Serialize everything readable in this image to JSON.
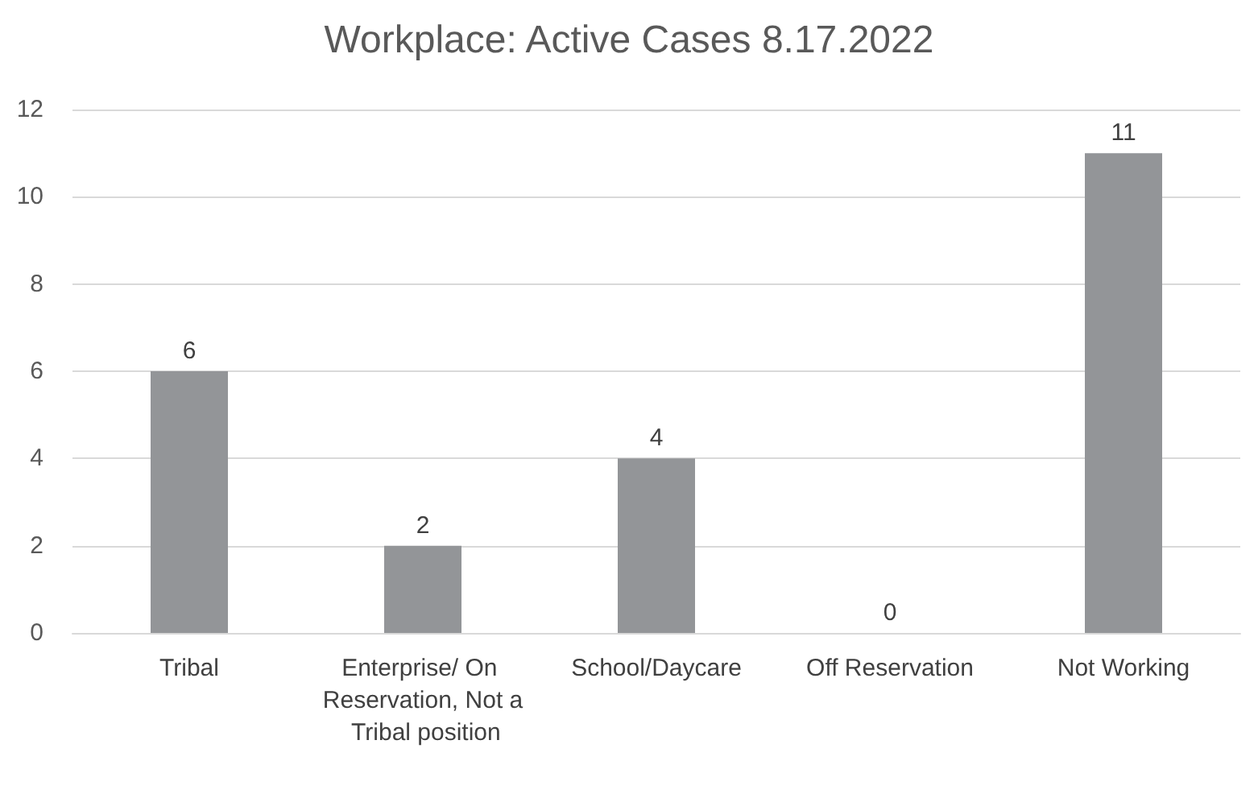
{
  "chart_data": {
    "type": "bar",
    "title": "Workplace: Active Cases 8.17.2022",
    "categories": [
      "Tribal",
      "Enterprise/ On Reservation, Not a Tribal position",
      "School/Daycare",
      "Off Reservation",
      "Not Working"
    ],
    "values": [
      6,
      2,
      4,
      0,
      11
    ],
    "color": "#939598",
    "ylim": [
      0,
      12
    ],
    "yticks": [
      0,
      2,
      4,
      6,
      8,
      10,
      12
    ],
    "grid": "y",
    "data_labels": true
  }
}
